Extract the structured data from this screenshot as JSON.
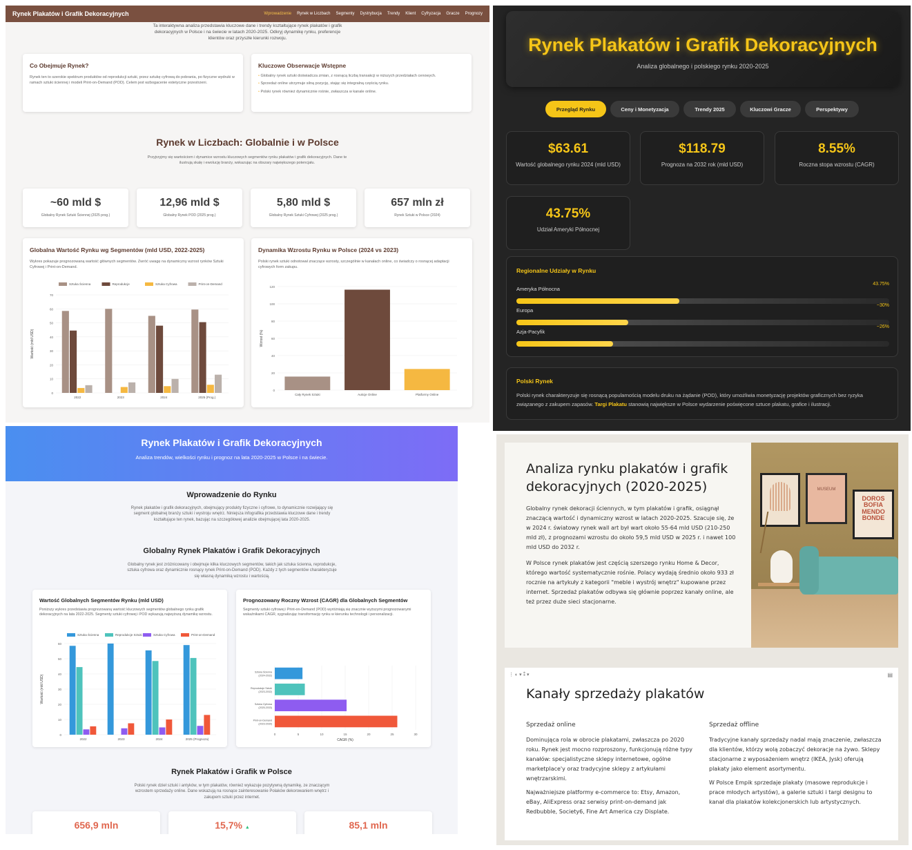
{
  "q1": {
    "brand": "Rynek Plakatów i Grafik Dekoracyjnych",
    "nav": [
      "Wprowadzenie",
      "Rynek w Liczbach",
      "Segmenty",
      "Dystrybucja",
      "Trendy",
      "Klient",
      "Cyfryzacja",
      "Gracze",
      "Prognozy"
    ],
    "intro": "Ta interaktywna analiza przedstawia kluczowe dane i trendy kształtujące rynek plakatów i grafik dekoracyjnych w Polsce i na świecie w latach 2020-2025. Odkryj dynamikę rynku, preferencje klientów oraz przyszłe kierunki rozwoju.",
    "card_left": {
      "title": "Co Obejmuje Rynek?",
      "text": "Rynek ten to szerokie spektrum produktów od reprodukcji sztuki, przez sztukę cyfrową do pobrania, po fizyczne wydruki w ramach sztuki ściennej i modeli Print-on-Demand (POD). Celem jest wzbogacenie estetyczne przestrzeni."
    },
    "card_right": {
      "title": "Kluczowe Obserwacje Wstępne",
      "items": [
        "Globalny rynek sztuki doświadcza zmian, z rosnącą liczbą transakcji w niższych przedziałach cenowych.",
        "Sprzedaż online utrzymuje silną pozycję, stając się integralną częścią rynku.",
        "Polski rynek również dynamicznie rośnie, zwłaszcza w kanale online."
      ]
    },
    "section_title": "Rynek w Liczbach: Globalnie i w Polsce",
    "section_text": "Przyjrzyjmy się wartościom i dynamice wzrostu kluczowych segmentów rynku plakatów i grafik dekoracyjnych. Dane te ilustrują skalę i ewolucję branży, wskazując na obszary największego potencjału.",
    "stats": [
      {
        "value": "~60 mld $",
        "label": "Globalny Rynek Sztuki Ściennej (2025 prog.)"
      },
      {
        "value": "12,96 mld $",
        "label": "Globalny Rynek POD (2025 prog.)"
      },
      {
        "value": "5,80 mld $",
        "label": "Globalny Rynek Sztuki Cyfrowej (2025 prog.)"
      },
      {
        "value": "657 mln zł",
        "label": "Rynek Sztuki w Polsce (2024)"
      }
    ],
    "chart1": {
      "title": "Globalna Wartość Rynku wg Segmentów (mld USD, 2022-2025)",
      "desc": "Wykres pokazuje prognozowaną wartość głównych segmentów. Zwróć uwagę na dynamiczny wzrost rynków Sztuki Cyfrowej i Print-on-Demand."
    },
    "chart2": {
      "title": "Dynamika Wzrostu Rynku w Polsce (2024 vs 2023)",
      "desc": "Polski rynek sztuki odnotował znaczące wzrosty, szczególnie w kanałach online, co świadczy o rosnącej adaptacji cyfrowych form zakupu."
    }
  },
  "q2": {
    "title": "Rynek Plakatów i Grafik Dekoracyjnych",
    "subtitle": "Analiza globalnego i polskiego rynku 2020-2025",
    "tabs": [
      "Przegląd Rynku",
      "Ceny i Monetyzacja",
      "Trendy 2025",
      "Kluczowi Gracze",
      "Perspektywy"
    ],
    "stats": [
      {
        "value": "$63.61",
        "label": "Wartość globalnego rynku 2024 (mld USD)"
      },
      {
        "value": "$118.79",
        "label": "Prognoza na 2032 rok (mld USD)"
      },
      {
        "value": "8.55%",
        "label": "Roczna stopa wzrostu (CAGR)"
      },
      {
        "value": "43.75%",
        "label": "Udział Ameryki Północnej"
      }
    ],
    "regional_title": "Regionalne Udziały w Rynku",
    "regions": [
      {
        "name": "Ameryka Północna",
        "pct": "43.75%",
        "level": 0.4375
      },
      {
        "name": "Europa",
        "pct": "~30%",
        "level": 0.3
      },
      {
        "name": "Azja-Pacyfik",
        "pct": "~26%",
        "level": 0.26
      }
    ],
    "polish_title": "Polski Rynek",
    "polish_text_a": "Polski rynek charakteryzuje się rosnącą popularnością modelu druku na żądanie (POD), który umożliwia monetyzację projektów graficznych bez ryzyka związanego z zakupem zapasów.",
    "polish_highlight": "Targi Plakatu",
    "polish_text_b": "stanowią największe w Polsce wydarzenie poświęcone sztuce plakatu, grafice i ilustracji."
  },
  "q3": {
    "title": "Rynek Plakatów i Grafik Dekoracyjnych",
    "subtitle": "Analiza trendów, wielkości rynku i prognoz na lata 2020-2025 w Polsce i na świecie.",
    "intro_title": "Wprowadzenie do Rynku",
    "intro_text": "Rynek plakatów i grafik dekoracyjnych, obejmujący produkty fizyczne i cyfrowe, to dynamicznie rozwijający się segment globalnej branży sztuki i wystroju wnętrz. Niniejsza infografika przedstawia kluczowe dane i trendy kształtujące ten rynek, bazując na szczegółowej analizie obejmującej lata 2020-2025.",
    "global_title": "Globalny Rynek Plakatów i Grafik Dekoracyjnych",
    "global_text": "Globalny rynek jest zróżnicowany i obejmuje kilka kluczowych segmentów, takich jak sztuka ścienna, reprodukcje, sztuka cyfrowa oraz dynamicznie rosnący rynek Print-on-Demand (POD). Każdy z tych segmentów charakteryzuje się własną dynamiką wzrostu i wartością.",
    "chart1": {
      "title": "Wartość Globalnych Segmentów Rynku (mld USD)",
      "desc": "Poniższy wykres przedstawia prognozowaną wartość kluczowych segmentów globalnego rynku grafik dekoracyjnych na lata 2022-2025. Segmenty sztuki cyfrowej i POD wykazują najwyższą dynamikę wzrostu."
    },
    "chart2": {
      "title": "Prognozowany Roczny Wzrost (CAGR) dla Globalnych Segmentów",
      "desc": "Segmenty sztuki cyfrowej i Print-on-Demand (POD) wyróżniają się znacznie wyższymi prognozowanymi wskaźnikami CAGR, sygnalizując transformację rynku w kierunku technologii i personalizacji."
    },
    "poland_title": "Rynek Plakatów i Grafik w Polsce",
    "poland_text": "Polski rynek dzieł sztuki i antyków, w tym plakatów, również wykazuje pozytywną dynamikę, ze znaczącym wzrostem sprzedaży online. Dane wskazują na rosnące zainteresowanie Polaków dekorowaniem wnętrz i zakupem sztuki przez internet.",
    "stats": [
      "656,9 mln",
      "15,7%",
      "85,1 mln"
    ],
    "up_arrow": "▲"
  },
  "q4": {
    "title": "Analiza rynku plakatów i grafik dekoracyjnych (2020-2025)",
    "p1": "Globalny rynek dekoracji ściennych, w tym plakatów i grafik, osiągnął znaczącą wartość i dynamiczny wzrost w latach 2020-2025. Szacuje się, że w 2024 r. światowy rynek wall art był wart około 55-64 mld USD (210-250 mld zł), z prognozami wzrostu do około 59,5 mld USD w 2025 r. i nawet 100 mld USD do 2032 r.",
    "p2": "W Polsce rynek plakatów jest częścią szerszego rynku Home & Decor, którego wartość systematycznie rośnie. Polacy wydają średnio około 933 zł rocznie na artykuły z kategorii \"meble i wystrój wnętrz\" kupowane przez internet. Sprzedaż plakatów odbywa się głównie poprzez kanały online, ale też przez duże sieci stacjonarne.",
    "poster_middle": "MUSEUM",
    "poster_right": "DOROS BOFIA MENDO BONDE",
    "channels_title": "Kanały sprzedaży plakatów",
    "online_title": "Sprzedaż online",
    "online_p1": "Dominująca rola w obrocie plakatami, zwłaszcza po 2020 roku. Rynek jest mocno rozproszony, funkcjonują różne typy kanałów: specjalistyczne sklepy internetowe, ogólne marketplace'y oraz tradycyjne sklepy z artykułami wnętrzarskimi.",
    "online_p2": "Najważniejsze platformy e-commerce to: Etsy, Amazon, eBay, AliExpress oraz serwisy print-on-demand jak Redbubble, Society6, Fine Art America czy Displate.",
    "offline_title": "Sprzedaż offline",
    "offline_p1": "Tradycyjne kanały sprzedaży nadal mają znaczenie, zwłaszcza dla klientów, którzy wolą zobaczyć dekoracje na żywo. Sklepy stacjonarne z wyposażeniem wnętrz (IKEA, Jysk) oferują plakaty jako element asortymentu.",
    "offline_p2": "W Polsce Empik sprzedaje plakaty (masowe reprodukcje i prace młodych artystów), a galerie sztuki i targi designu to kanał dla plakatów kolekcjonerskich lub artystycznych."
  },
  "chart_data": [
    {
      "type": "bar",
      "title": "Globalna Wartość Rynku wg Segmentów (mld USD, 2022-2025)",
      "ylabel": "Wartość (mld USD)",
      "categories": [
        "2022",
        "2023",
        "2024",
        "2025 (Prog.)"
      ],
      "series": [
        {
          "name": "Sztuka Ścienna",
          "values": [
            58.5,
            60,
            55,
            59.5
          ],
          "color": "#a89185"
        },
        {
          "name": "Reprodukcje",
          "values": [
            44.5,
            0,
            48,
            50.5
          ],
          "color": "#6e4a3c"
        },
        {
          "name": "Sztuka Cyfrowa",
          "values": [
            3.5,
            4.2,
            4.8,
            5.8
          ],
          "color": "#f5b841"
        },
        {
          "name": "Print-on-Demand",
          "values": [
            5.5,
            7.5,
            10,
            13
          ],
          "color": "#bbb1ab"
        }
      ],
      "ylim": [
        0,
        70
      ],
      "yticks": [
        0,
        10,
        20,
        30,
        40,
        50,
        60,
        70
      ]
    },
    {
      "type": "bar",
      "title": "Dynamika Wzrostu Rynku w Polsce (2024 vs 2023)",
      "ylabel": "Wzrost (%)",
      "categories": [
        "Cały Rynek Sztuki",
        "Aukcje Online",
        "Platformy Online"
      ],
      "values": [
        15.7,
        116.4,
        24.5
      ],
      "colors": [
        "#a89185",
        "#6e4a3c",
        "#f5b841"
      ],
      "ylim": [
        0,
        120
      ],
      "yticks": [
        0,
        20,
        40,
        60,
        80,
        100,
        120
      ]
    },
    {
      "type": "bar",
      "title": "Wartość Globalnych Segmentów Rynku (mld USD)",
      "ylabel": "Wartość (mld USD)",
      "categories": [
        "2022",
        "2023",
        "2024",
        "2025 (Prognoza)"
      ],
      "series": [
        {
          "name": "Sztuka Ścienna",
          "values": [
            58.5,
            60,
            55.5,
            59
          ],
          "color": "#3498db"
        },
        {
          "name": "Reprodukcje Sztuki",
          "values": [
            44.5,
            0,
            48.5,
            50.5
          ],
          "color": "#4ec3bc"
        },
        {
          "name": "Sztuka Cyfrowa",
          "values": [
            3.5,
            4.2,
            4.8,
            5.8
          ],
          "color": "#8e5cf0"
        },
        {
          "name": "Print-on-Demand",
          "values": [
            5.5,
            7.5,
            10,
            13
          ],
          "color": "#f0583a"
        }
      ],
      "ylim": [
        0,
        60
      ],
      "yticks": [
        0,
        10,
        20,
        30,
        40,
        50,
        60
      ]
    },
    {
      "type": "bar",
      "orientation": "horizontal",
      "title": "Prognozowany Roczny Wzrost (CAGR) dla Globalnych Segmentów",
      "xlabel": "CAGR (%)",
      "categories": [
        "Sztuka Ścienna (2024-2032)",
        "Reprodukcje Sztuki (2023-2032)",
        "Sztuka Cyfrowa (2025-2033)",
        "Print-on-Demand (2023-2030)"
      ],
      "values": [
        5.9,
        6.4,
        15.3,
        26.1
      ],
      "colors": [
        "#3498db",
        "#4ec3bc",
        "#8e5cf0",
        "#f0583a"
      ],
      "xlim": [
        0,
        30
      ],
      "xticks": [
        0,
        5,
        10,
        15,
        20,
        25,
        30
      ]
    }
  ]
}
